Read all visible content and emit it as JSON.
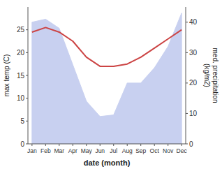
{
  "chart_data": {
    "type": "line",
    "xlabel": "date (month)",
    "ylabel": "max temp (C)",
    "y2label": "med. precipitation\n(kg/m2)",
    "categories": [
      "Jan",
      "Feb",
      "Mar",
      "Apr",
      "May",
      "Jun",
      "Jul",
      "Aug",
      "Sep",
      "Oct",
      "Nov",
      "Dec"
    ],
    "series": [
      {
        "type": "area",
        "axis": "y2",
        "color": "#c8d0f0",
        "values": [
          40.0,
          41.0,
          38.0,
          26.0,
          14.0,
          9.0,
          9.5,
          20.0,
          20.0,
          25.0,
          32.0,
          43.0
        ]
      },
      {
        "type": "line",
        "color": "#cc4444",
        "values": [
          24.5,
          25.5,
          24.5,
          22.5,
          19.0,
          17.0,
          17.0,
          17.5,
          19.0,
          21.0,
          23.0,
          25.0
        ]
      }
    ],
    "ylim": [
      0,
      30
    ],
    "yticks": [
      0,
      5,
      10,
      15,
      20,
      25
    ],
    "y2lim": [
      0,
      45
    ],
    "y2ticks": [
      0,
      10,
      20,
      30,
      40
    ],
    "grid": false
  }
}
